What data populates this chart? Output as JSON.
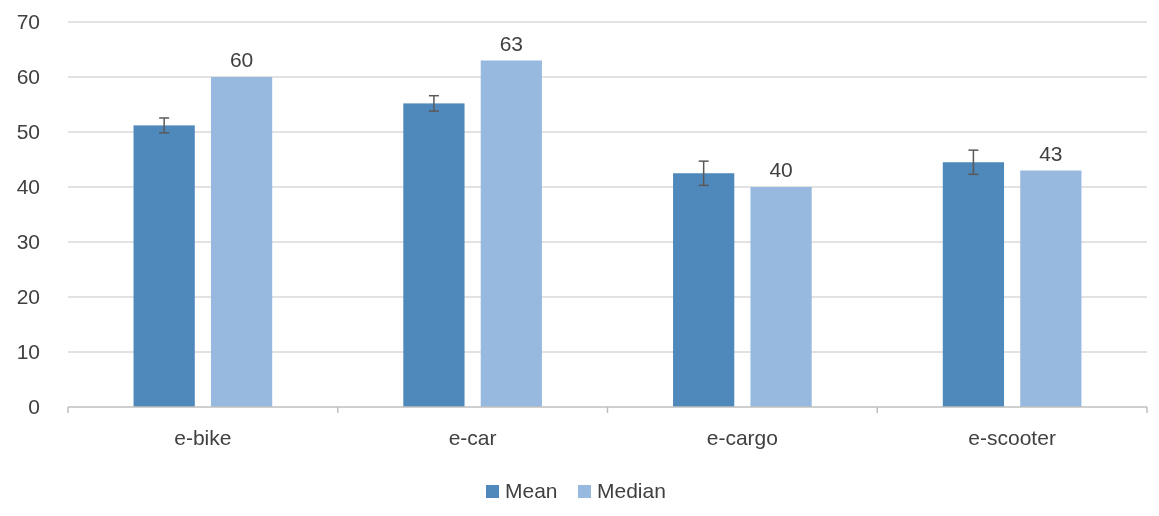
{
  "chart_data": {
    "type": "bar",
    "categories": [
      "e-bike",
      "e-car",
      "e-cargo",
      "e-scooter"
    ],
    "series": [
      {
        "name": "Mean",
        "color": "#4f88bb",
        "values": [
          51.2,
          55.2,
          42.5,
          44.5
        ],
        "errors": [
          1.35,
          1.4,
          2.2,
          2.2
        ]
      },
      {
        "name": "Median",
        "color": "#98b9df",
        "values": [
          60,
          63,
          40,
          43
        ],
        "value_labels": [
          "60",
          "63",
          "40",
          "43"
        ]
      }
    ],
    "ylim": [
      0,
      70
    ],
    "yticks": [
      0,
      10,
      20,
      30,
      40,
      50,
      60,
      70
    ],
    "grid": "y",
    "legend": "bottom"
  }
}
